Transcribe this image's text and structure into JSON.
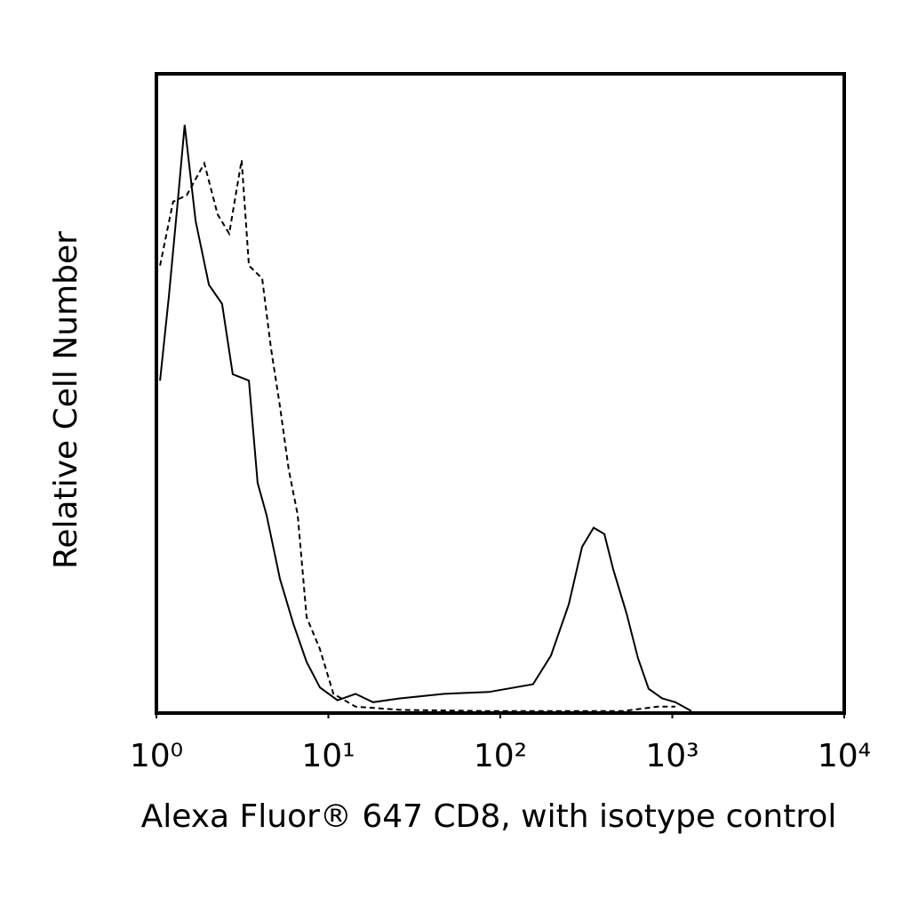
{
  "chart_data": {
    "type": "line",
    "x_label": "Alexa Fluor® 647 CD8, with isotype control",
    "y_label": "Relative Cell Number",
    "xscale": "log",
    "xlim": [
      1,
      10000
    ],
    "xticks": [
      {
        "value": 1,
        "label": "10⁰"
      },
      {
        "value": 10,
        "label": "10¹"
      },
      {
        "value": 100,
        "label": "10²"
      },
      {
        "value": 1000,
        "label": "10³"
      },
      {
        "value": 10000,
        "label": "10⁴"
      }
    ],
    "ylim": [
      0,
      100
    ],
    "series": [
      {
        "color": "#000000",
        "dash": false,
        "x": [
          1.05,
          1.18,
          1.33,
          1.46,
          1.69,
          2.02,
          2.41,
          2.78,
          3.45,
          3.88,
          4.37,
          5.23,
          6.25,
          7.47,
          8.93,
          11.3,
          14.4,
          18.2,
          26.1,
          47.2,
          85.7,
          155,
          197,
          250,
          299,
          349,
          403,
          453,
          542,
          632,
          729,
          873,
          1042,
          1291
        ],
        "values": [
          52,
          65,
          80,
          92,
          77,
          67,
          64,
          53,
          52,
          36,
          31,
          21,
          14,
          8,
          4,
          2,
          3,
          1.7,
          2.3,
          3,
          3.3,
          4.5,
          9,
          17,
          26,
          29,
          28,
          22.5,
          15.6,
          8.6,
          3.8,
          2.3,
          1.7,
          0.3
        ]
      },
      {
        "color": "#000000",
        "dash": true,
        "x": [
          1.05,
          1.25,
          1.5,
          1.9,
          2.27,
          2.65,
          3.13,
          3.45,
          4.12,
          4.64,
          5.23,
          5.89,
          6.63,
          7.47,
          8.93,
          10.7,
          14.4,
          26.1,
          85.7,
          281,
          511,
          823,
          1042
        ],
        "values": [
          70,
          80,
          81,
          86,
          78,
          75,
          86.5,
          70,
          68,
          57,
          48,
          38,
          31,
          15,
          10,
          3,
          1,
          0.5,
          0.3,
          0.3,
          0.3,
          1,
          1
        ]
      }
    ]
  }
}
